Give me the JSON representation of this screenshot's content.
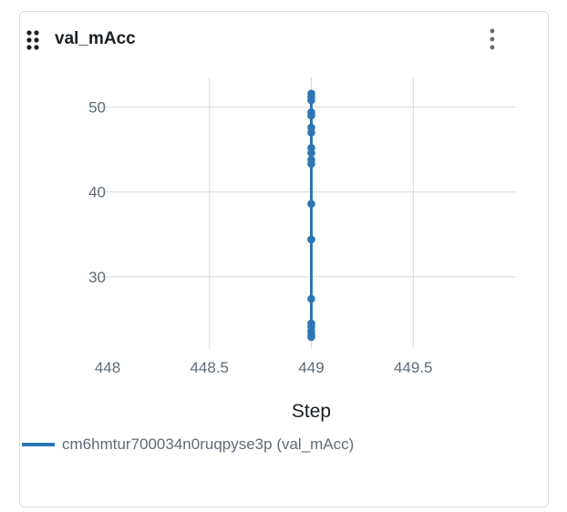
{
  "card": {
    "title": "val_mAcc",
    "drag_icon": "drag-handle-icon",
    "menu_icon": "kebab-menu-icon"
  },
  "chart_data": {
    "type": "line",
    "title": "",
    "xlabel": "Step",
    "ylabel": "",
    "xlim": [
      448,
      450
    ],
    "ylim": [
      21.5,
      53.5
    ],
    "x_ticks": [
      448,
      448.5,
      449,
      449.5
    ],
    "x_tick_labels": [
      "448",
      "448.5",
      "449",
      "449.5"
    ],
    "y_ticks": [
      30,
      40,
      50
    ],
    "y_tick_labels": [
      "30",
      "40",
      "50"
    ],
    "grid": true,
    "legend_position": "bottom-left",
    "series": [
      {
        "name": "cm6hmtur700034n0ruqpyse3p (val_mAcc)",
        "color": "#2c76b5",
        "x": [
          449,
          449,
          449,
          449,
          449,
          449,
          449,
          449,
          449,
          449,
          449,
          449,
          449,
          449,
          449,
          449,
          449,
          449,
          449,
          449,
          449
        ],
        "y": [
          51.6,
          51.2,
          50.8,
          49.4,
          49.0,
          47.6,
          47.0,
          45.2,
          44.6,
          43.8,
          43.3,
          38.6,
          34.4,
          27.4,
          24.5,
          24.1,
          23.6,
          23.2,
          22.9,
          34.4,
          38.6
        ]
      }
    ]
  }
}
